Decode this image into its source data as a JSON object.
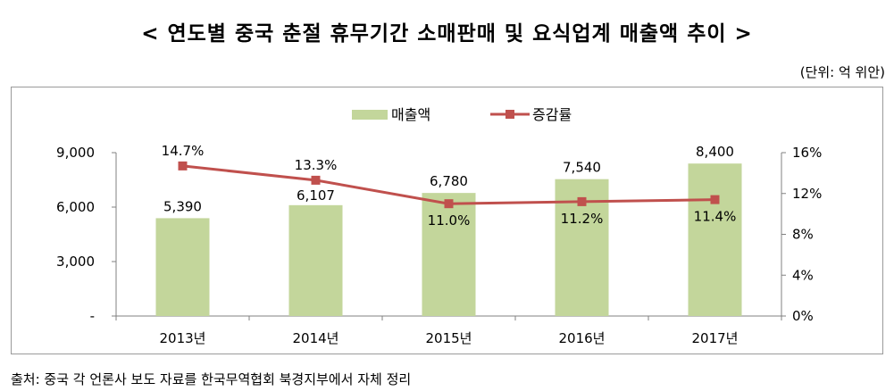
{
  "title": "< 연도별 중국 춘절 휴무기간 소매판매 및 요식업계 매출액 추이 >",
  "unit": "(단위: 억 위안)",
  "source": "출처: 중국 각 언론사 보도 자료를 한국무역협회 북경지부에서 자체 정리",
  "colors": {
    "bar": "#c3d69b",
    "line": "#c0504d"
  },
  "chart_data": {
    "type": "bar",
    "categories": [
      "2013년",
      "2014년",
      "2015년",
      "2016년",
      "2017년"
    ],
    "series": [
      {
        "name": "매출액",
        "type": "bar",
        "axis": "left",
        "values": [
          5390,
          6107,
          6780,
          7540,
          8400
        ],
        "labels": [
          "5,390",
          "6,107",
          "6,780",
          "7,540",
          "8,400"
        ]
      },
      {
        "name": "증감률",
        "type": "line",
        "axis": "right",
        "values": [
          14.7,
          13.3,
          11.0,
          11.2,
          11.4
        ],
        "labels": [
          "14.7%",
          "13.3%",
          "11.0%",
          "11.2%",
          "11.4%"
        ]
      }
    ],
    "left_axis": {
      "ylim": [
        0,
        9000
      ],
      "ticks": [
        0,
        3000,
        6000,
        9000
      ],
      "tick_labels": [
        "-",
        "3,000",
        "6,000",
        "9,000"
      ]
    },
    "right_axis": {
      "ylim": [
        0,
        16
      ],
      "ticks": [
        0,
        4,
        8,
        12,
        16
      ],
      "tick_labels": [
        "0%",
        "4%",
        "8%",
        "12%",
        "16%"
      ]
    },
    "legend": {
      "position": "top",
      "entries": [
        "매출액",
        "증감률"
      ]
    },
    "grid": false
  }
}
